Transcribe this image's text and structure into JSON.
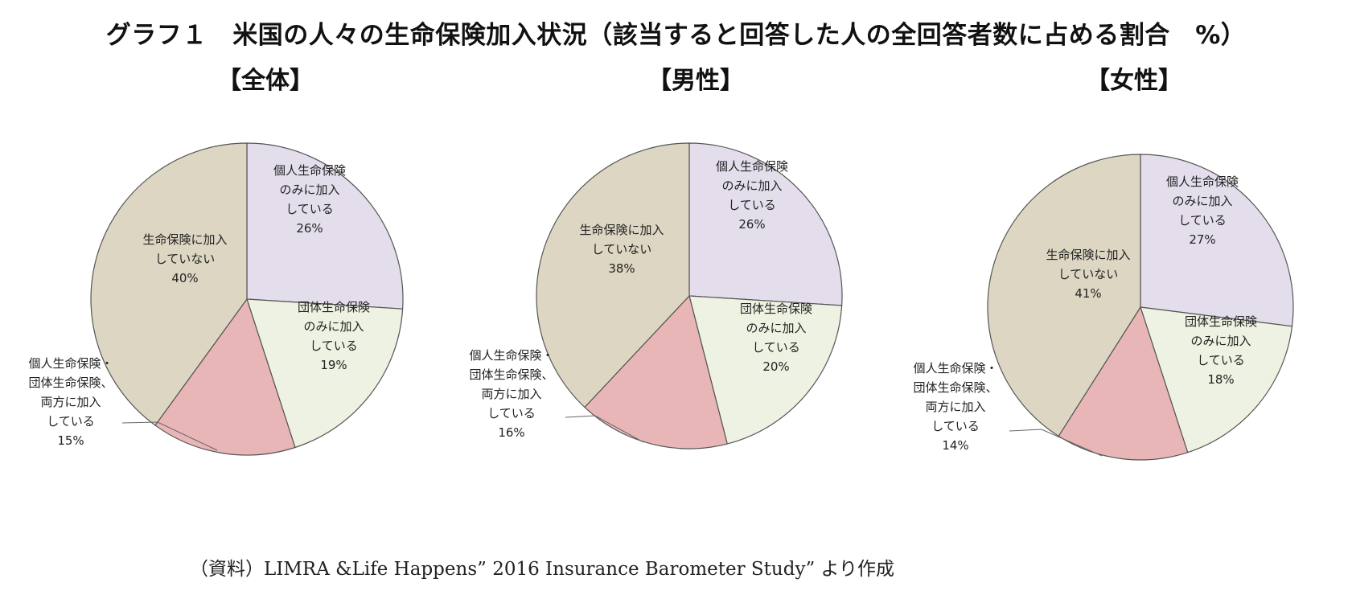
{
  "title": "グラフ１　米国の人々の生命保険加入状況（該当すると回答した人の全回答者数に占める割合　%）",
  "source": "（資料）LIMRA &Life Happens” 2016 Insurance Barometer Study” より作成",
  "colors": {
    "individual_only": "#e4deec",
    "group_only": "#eef2e2",
    "both": "#e9b6b8",
    "none": "#ddd6c3",
    "stroke": "#555555"
  },
  "chart_data": [
    {
      "type": "pie",
      "title": "【全体】",
      "slices": [
        {
          "label": [
            "個人生命保険",
            "のみに加入",
            "している"
          ],
          "pct_label": "26%",
          "value": 26,
          "color_key": "individual_only"
        },
        {
          "label": [
            "団体生命保険",
            "のみに加入",
            "している"
          ],
          "pct_label": "19%",
          "value": 19,
          "color_key": "group_only"
        },
        {
          "label": [
            "個人生命保険・",
            "団体生命保険、",
            "両方に加入",
            "している"
          ],
          "pct_label": "15%",
          "value": 15,
          "color_key": "both"
        },
        {
          "label": [
            "生命保険に加入",
            "していない"
          ],
          "pct_label": "40%",
          "value": 40,
          "color_key": "none"
        }
      ]
    },
    {
      "type": "pie",
      "title": "【男性】",
      "slices": [
        {
          "label": [
            "個人生命保険",
            "のみに加入",
            "している"
          ],
          "pct_label": "26%",
          "value": 26,
          "color_key": "individual_only"
        },
        {
          "label": [
            "団体生命保険",
            "のみに加入",
            "している"
          ],
          "pct_label": "20%",
          "value": 20,
          "color_key": "group_only"
        },
        {
          "label": [
            "個人生命保険・",
            "団体生命保険、",
            "両方に加入",
            "している"
          ],
          "pct_label": "16%",
          "value": 16,
          "color_key": "both"
        },
        {
          "label": [
            "生命保険に加入",
            "していない"
          ],
          "pct_label": "38%",
          "value": 38,
          "color_key": "none"
        }
      ]
    },
    {
      "type": "pie",
      "title": "【女性】",
      "slices": [
        {
          "label": [
            "個人生命保険",
            "のみに加入",
            "している"
          ],
          "pct_label": "27%",
          "value": 27,
          "color_key": "individual_only"
        },
        {
          "label": [
            "団体生命保険",
            "のみに加入",
            "している"
          ],
          "pct_label": "18%",
          "value": 18,
          "color_key": "group_only"
        },
        {
          "label": [
            "個人生命保険・",
            "団体生命保険、",
            "両方に加入",
            "している"
          ],
          "pct_label": "14%",
          "value": 14,
          "color_key": "both"
        },
        {
          "label": [
            "生命保険に加入",
            "していない"
          ],
          "pct_label": "41%",
          "value": 41,
          "color_key": "none"
        }
      ]
    }
  ]
}
